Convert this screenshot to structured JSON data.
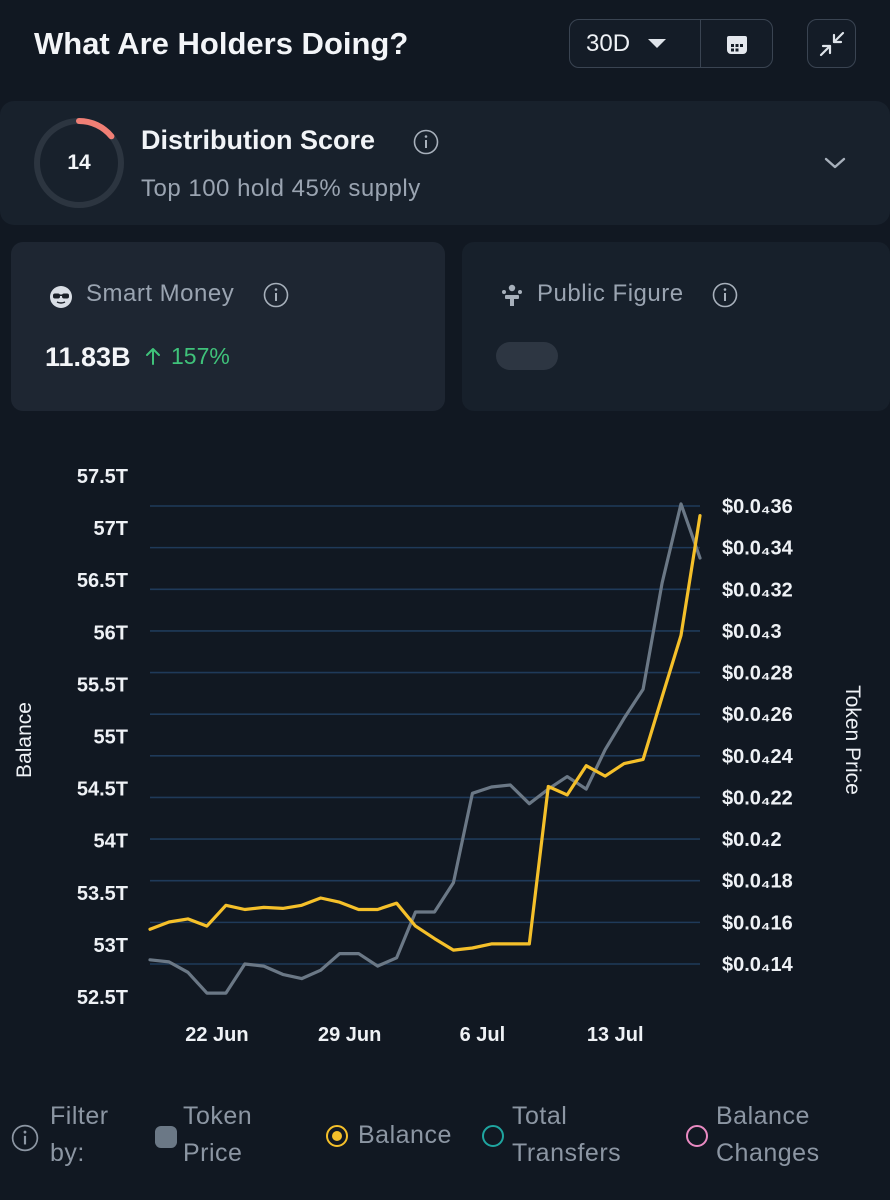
{
  "header": {
    "title": "What Are Holders Doing?",
    "range_value": "30D",
    "calendar_icon": "calendar-icon",
    "collapse_icon": "collapse-arrows-icon"
  },
  "distribution": {
    "score": "14",
    "score_fraction": 0.14,
    "title": "Distribution Score",
    "subtitle": "Top 100 hold 45% supply"
  },
  "cards": {
    "smart_money": {
      "label": "Smart Money",
      "value": "11.83B",
      "change": "157%"
    },
    "public_figure": {
      "label": "Public Figure"
    }
  },
  "filter": {
    "label_line1": "Filter",
    "label_line2": "by:",
    "items": [
      {
        "line1": "Token",
        "line2": "Price",
        "color": "#6b7886"
      },
      {
        "line1": "Balance",
        "line2": "",
        "color": "#f5c02a"
      },
      {
        "line1": "Total",
        "line2": "Transfers",
        "color": "#1fa5a0"
      },
      {
        "line1": "Balance",
        "line2": "Changes",
        "color": "#e98ac2"
      }
    ]
  },
  "chart_data": {
    "type": "line",
    "ylabel": "Balance",
    "y2label": "Token Price",
    "ylim": [
      52.5,
      57.5
    ],
    "y2lim": [
      0.13,
      0.37
    ],
    "yticks": [
      "52.5T",
      "53T",
      "53.5T",
      "54T",
      "54.5T",
      "55T",
      "55.5T",
      "56T",
      "56.5T",
      "57T",
      "57.5T"
    ],
    "y2ticks": [
      {
        "value": 0.14,
        "label": "$0.0₄14"
      },
      {
        "value": 0.16,
        "label": "$0.0₄16"
      },
      {
        "value": 0.18,
        "label": "$0.0₄18"
      },
      {
        "value": 0.2,
        "label": "$0.0₄2"
      },
      {
        "value": 0.22,
        "label": "$0.0₄22"
      },
      {
        "value": 0.24,
        "label": "$0.0₄24"
      },
      {
        "value": 0.26,
        "label": "$0.0₄26"
      },
      {
        "value": 0.28,
        "label": "$0.0₄28"
      },
      {
        "value": 0.3,
        "label": "$0.0₄3"
      },
      {
        "value": 0.32,
        "label": "$0.0₄32"
      },
      {
        "value": 0.34,
        "label": "$0.0₄34"
      },
      {
        "value": 0.36,
        "label": "$0.0₄36"
      }
    ],
    "xtick_labels": [
      {
        "label": "22 Jun",
        "index": 3
      },
      {
        "label": "29 Jun",
        "index": 10
      },
      {
        "label": "6 Jul",
        "index": 17
      },
      {
        "label": "13 Jul",
        "index": 24
      }
    ],
    "grid": true,
    "series": [
      {
        "name": "Token Price",
        "axis": "right",
        "color": "#6b7886",
        "values": [
          0.142,
          0.141,
          0.136,
          0.126,
          0.126,
          0.14,
          0.139,
          0.135,
          0.133,
          0.137,
          0.145,
          0.145,
          0.139,
          0.143,
          0.165,
          0.165,
          0.179,
          0.222,
          0.225,
          0.226,
          0.217,
          0.224,
          0.23,
          0.224,
          0.243,
          0.258,
          0.272,
          0.323,
          0.361,
          0.335
        ]
      },
      {
        "name": "Balance",
        "axis": "left",
        "color": "#f5c02a",
        "values": [
          53.15,
          53.22,
          53.25,
          53.18,
          53.38,
          53.34,
          53.36,
          53.35,
          53.38,
          53.45,
          53.41,
          53.34,
          53.34,
          53.4,
          53.18,
          53.06,
          52.95,
          52.97,
          53.01,
          53.01,
          53.01,
          54.52,
          54.44,
          54.72,
          54.62,
          54.74,
          54.78,
          55.38,
          55.97,
          57.12
        ]
      }
    ]
  }
}
